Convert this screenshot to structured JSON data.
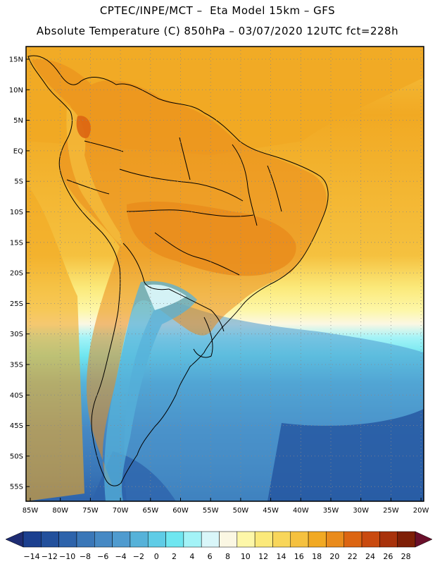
{
  "header": {
    "line1": "CPTEC/INPE/MCT –  Eta Model 15km – GFS",
    "line2": "Absolute Temperature (C) 850hPa – 03/07/2020 12UTC fct=228h"
  },
  "axes": {
    "lat_labels": [
      "15N",
      "10N",
      "5N",
      "EQ",
      "5S",
      "10S",
      "15S",
      "20S",
      "25S",
      "30S",
      "35S",
      "40S",
      "45S",
      "50S",
      "55S"
    ],
    "lon_labels": [
      "85W",
      "80W",
      "75W",
      "70W",
      "65W",
      "60W",
      "55W",
      "50W",
      "45W",
      "40W",
      "35W",
      "30W",
      "25W",
      "20W"
    ]
  },
  "colorbar": {
    "labels": [
      "-14",
      "-12",
      "-10",
      "-8",
      "-6",
      "-4",
      "-2",
      "0",
      "2",
      "4",
      "6",
      "8",
      "10",
      "12",
      "14",
      "16",
      "18",
      "20",
      "22",
      "24",
      "26",
      "28"
    ],
    "colors": [
      "#1b3f8f",
      "#22509c",
      "#2d63ab",
      "#3a77b8",
      "#4689c4",
      "#4f9bcf",
      "#56b2d9",
      "#5fcce6",
      "#6fe6f0",
      "#a3f3f7",
      "#d9f6f9",
      "#fbf7e3",
      "#fdf7a8",
      "#fbe97a",
      "#f8d65a",
      "#f5c13f",
      "#f1a923",
      "#e98b1c",
      "#dc6512",
      "#c94a0f",
      "#a8320b",
      "#7e1f06"
    ],
    "low_arrow_color": "#1e2c73",
    "high_arrow_color": "#6a0f2a"
  }
}
